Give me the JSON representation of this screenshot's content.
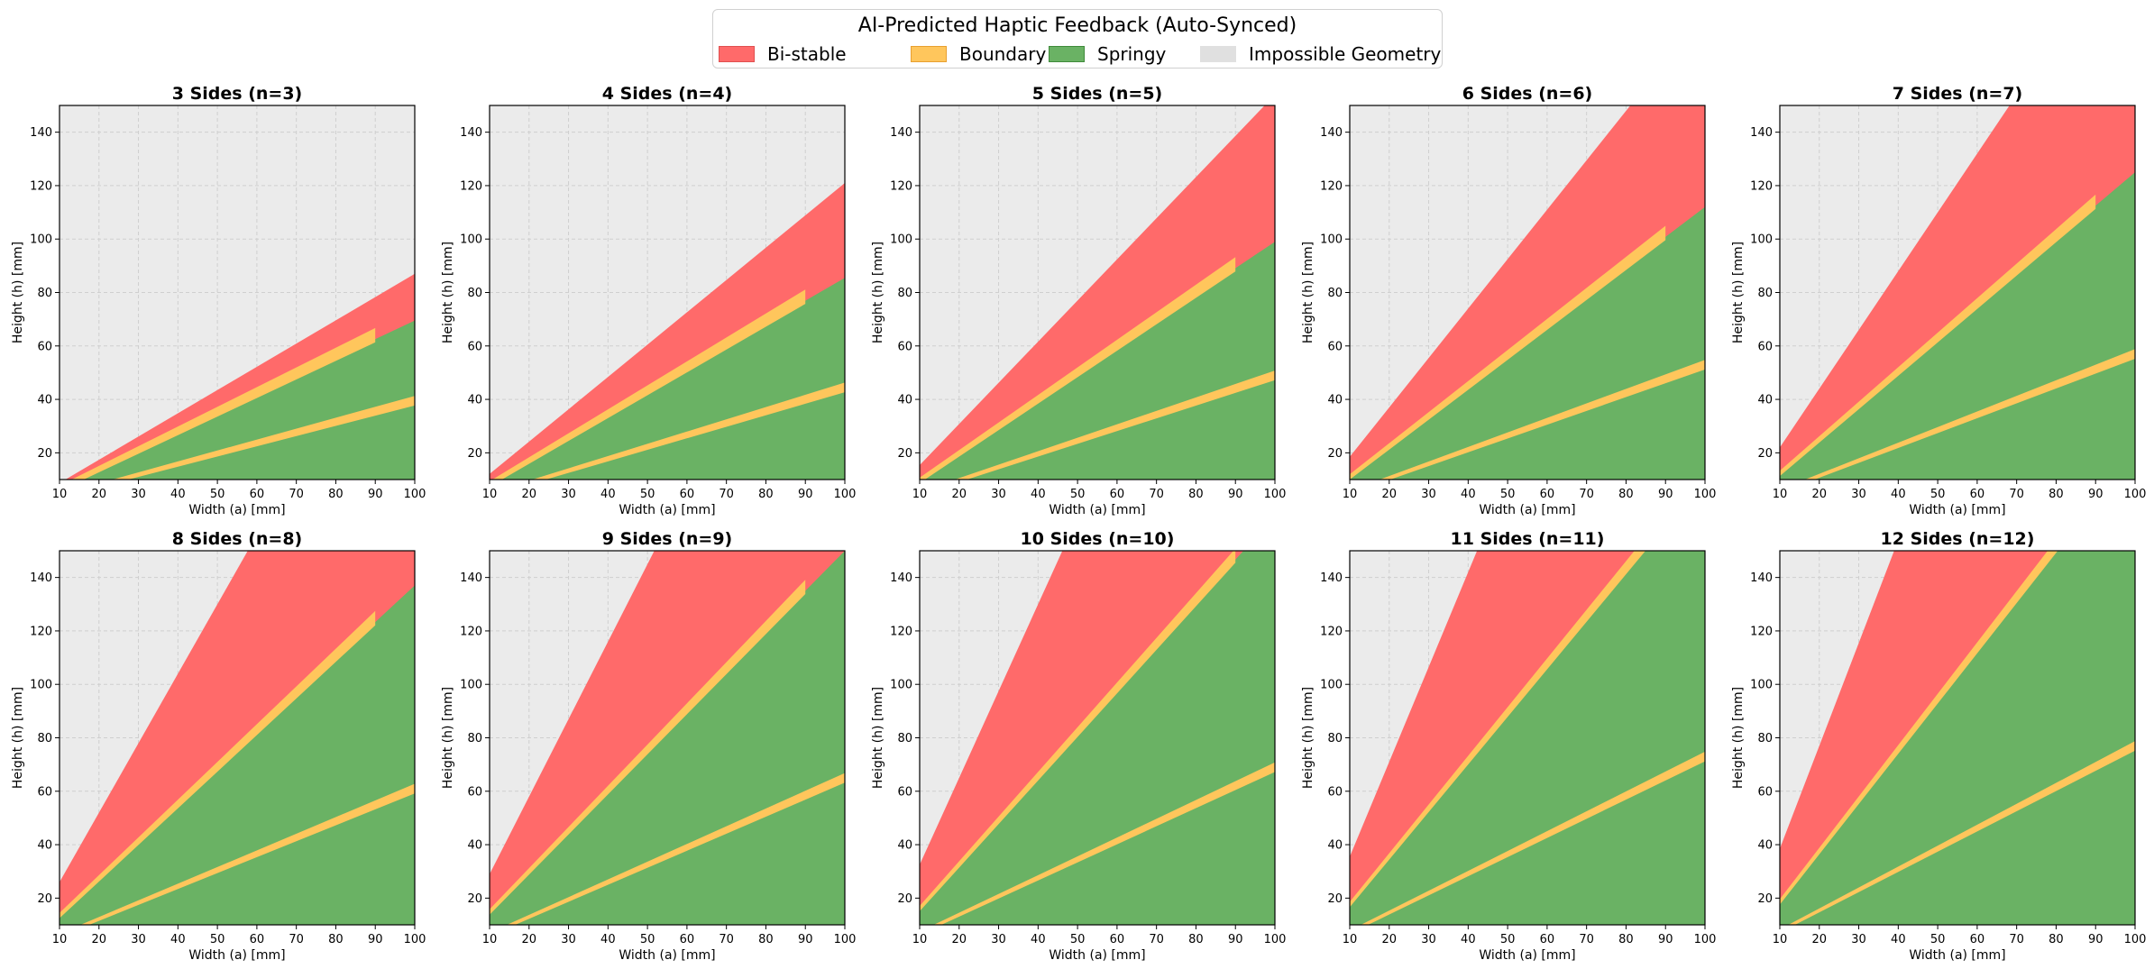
{
  "legend": {
    "title": "AI-Predicted Haptic Feedback (Auto-Synced)",
    "items": [
      {
        "label": "Bi-stable",
        "color": "#ff6a6a",
        "edge": "#e05050"
      },
      {
        "label": "Boundary",
        "color": "#ffc65c",
        "edge": "#e8a030"
      },
      {
        "label": "Springy",
        "color": "#6ab264",
        "edge": "#3f8a3a"
      },
      {
        "label": "Impossible Geometry",
        "color": "#e0e0e0",
        "edge": "#e0e0e0"
      }
    ]
  },
  "colors": {
    "impossible": "#ebebeb",
    "bistable": "#ff6a6a",
    "boundary": "#ffc65c",
    "springy": "#6ab264"
  },
  "chart_data": [
    {
      "type": "area",
      "title": "3 Sides (n=3)",
      "xlabel": "Width (a) [mm]",
      "ylabel": "Height (h) [mm]",
      "xlim": [
        10,
        100
      ],
      "ylim": [
        10,
        150
      ],
      "xticks": [
        10,
        20,
        30,
        40,
        50,
        60,
        70,
        80,
        90,
        100
      ],
      "yticks": [
        20,
        40,
        60,
        80,
        100,
        120,
        140
      ],
      "grid": true,
      "regions": {
        "max_height_slope": 0.87,
        "bistable_springy_slope": 0.695,
        "boundary_band_end_a": 90,
        "lower_boundary_slope": 0.395
      }
    },
    {
      "type": "area",
      "title": "4 Sides (n=4)",
      "xlabel": "Width (a) [mm]",
      "ylabel": "Height (h) [mm]",
      "xlim": [
        10,
        100
      ],
      "ylim": [
        10,
        150
      ],
      "xticks": [
        10,
        20,
        30,
        40,
        50,
        60,
        70,
        80,
        90,
        100
      ],
      "yticks": [
        20,
        40,
        60,
        80,
        100,
        120,
        140
      ],
      "grid": true,
      "regions": {
        "max_height_slope": 1.21,
        "bistable_springy_slope": 0.855,
        "boundary_band_end_a": 90,
        "lower_boundary_slope": 0.445
      }
    },
    {
      "type": "area",
      "title": "5 Sides (n=5)",
      "xlabel": "Width (a) [mm]",
      "ylabel": "Height (h) [mm]",
      "xlim": [
        10,
        100
      ],
      "ylim": [
        10,
        150
      ],
      "xticks": [
        10,
        20,
        30,
        40,
        50,
        60,
        70,
        80,
        90,
        100
      ],
      "yticks": [
        20,
        40,
        60,
        80,
        100,
        120,
        140
      ],
      "grid": true,
      "regions": {
        "max_height_slope": 1.54,
        "bistable_springy_slope": 0.99,
        "boundary_band_end_a": 90,
        "lower_boundary_slope": 0.49
      }
    },
    {
      "type": "area",
      "title": "6 Sides (n=6)",
      "xlabel": "Width (a) [mm]",
      "ylabel": "Height (h) [mm]",
      "xlim": [
        10,
        100
      ],
      "ylim": [
        10,
        150
      ],
      "xticks": [
        10,
        20,
        30,
        40,
        50,
        60,
        70,
        80,
        90,
        100
      ],
      "yticks": [
        20,
        40,
        60,
        80,
        100,
        120,
        140
      ],
      "grid": true,
      "regions": {
        "max_height_slope": 1.85,
        "bistable_springy_slope": 1.12,
        "boundary_band_end_a": 90,
        "lower_boundary_slope": 0.53
      }
    },
    {
      "type": "area",
      "title": "7 Sides (n=7)",
      "xlabel": "Width (a) [mm]",
      "ylabel": "Height (h) [mm]",
      "xlim": [
        10,
        100
      ],
      "ylim": [
        10,
        150
      ],
      "xticks": [
        10,
        20,
        30,
        40,
        50,
        60,
        70,
        80,
        90,
        100
      ],
      "yticks": [
        20,
        40,
        60,
        80,
        100,
        120,
        140
      ],
      "grid": true,
      "regions": {
        "max_height_slope": 2.2,
        "bistable_springy_slope": 1.25,
        "boundary_band_end_a": 90,
        "lower_boundary_slope": 0.57
      }
    },
    {
      "type": "area",
      "title": "8 Sides (n=8)",
      "xlabel": "Width (a) [mm]",
      "ylabel": "Height (h) [mm]",
      "xlim": [
        10,
        100
      ],
      "ylim": [
        10,
        150
      ],
      "xticks": [
        10,
        20,
        30,
        40,
        50,
        60,
        70,
        80,
        90,
        100
      ],
      "yticks": [
        20,
        40,
        60,
        80,
        100,
        120,
        140
      ],
      "grid": true,
      "regions": {
        "max_height_slope": 2.6,
        "bistable_springy_slope": 1.37,
        "boundary_band_end_a": 90,
        "lower_boundary_slope": 0.61
      }
    },
    {
      "type": "area",
      "title": "9 Sides (n=9)",
      "xlabel": "Width (a) [mm]",
      "ylabel": "Height (h) [mm]",
      "xlim": [
        10,
        100
      ],
      "ylim": [
        10,
        150
      ],
      "xticks": [
        10,
        20,
        30,
        40,
        50,
        60,
        70,
        80,
        90,
        100
      ],
      "yticks": [
        20,
        40,
        60,
        80,
        100,
        120,
        140
      ],
      "grid": true,
      "regions": {
        "max_height_slope": 2.9,
        "bistable_springy_slope": 1.5,
        "boundary_band_end_a": 90,
        "lower_boundary_slope": 0.65
      }
    },
    {
      "type": "area",
      "title": "10 Sides (n=10)",
      "xlabel": "Width (a) [mm]",
      "ylabel": "Height (h) [mm]",
      "xlim": [
        10,
        100
      ],
      "ylim": [
        10,
        150
      ],
      "xticks": [
        10,
        20,
        30,
        40,
        50,
        60,
        70,
        80,
        90,
        100
      ],
      "yticks": [
        20,
        40,
        60,
        80,
        100,
        120,
        140
      ],
      "grid": true,
      "regions": {
        "max_height_slope": 3.25,
        "bistable_springy_slope": 1.63,
        "boundary_band_end_a": 90,
        "lower_boundary_slope": 0.69
      }
    },
    {
      "type": "area",
      "title": "11 Sides (n=11)",
      "xlabel": "Width (a) [mm]",
      "ylabel": "Height (h) [mm]",
      "xlim": [
        10,
        100
      ],
      "ylim": [
        10,
        150
      ],
      "xticks": [
        10,
        20,
        30,
        40,
        50,
        60,
        70,
        80,
        90,
        100
      ],
      "yticks": [
        20,
        40,
        60,
        80,
        100,
        120,
        140
      ],
      "grid": true,
      "regions": {
        "max_height_slope": 3.55,
        "bistable_springy_slope": 1.78,
        "boundary_band_end_a": 90,
        "lower_boundary_slope": 0.73
      }
    },
    {
      "type": "area",
      "title": "12 Sides (n=12)",
      "xlabel": "Width (a) [mm]",
      "ylabel": "Height (h) [mm]",
      "xlim": [
        10,
        100
      ],
      "ylim": [
        10,
        150
      ],
      "xticks": [
        10,
        20,
        30,
        40,
        50,
        60,
        70,
        80,
        90,
        100
      ],
      "yticks": [
        20,
        40,
        60,
        80,
        100,
        120,
        140
      ],
      "grid": true,
      "regions": {
        "max_height_slope": 3.85,
        "bistable_springy_slope": 1.88,
        "boundary_band_end_a": 90,
        "lower_boundary_slope": 0.77
      }
    }
  ]
}
